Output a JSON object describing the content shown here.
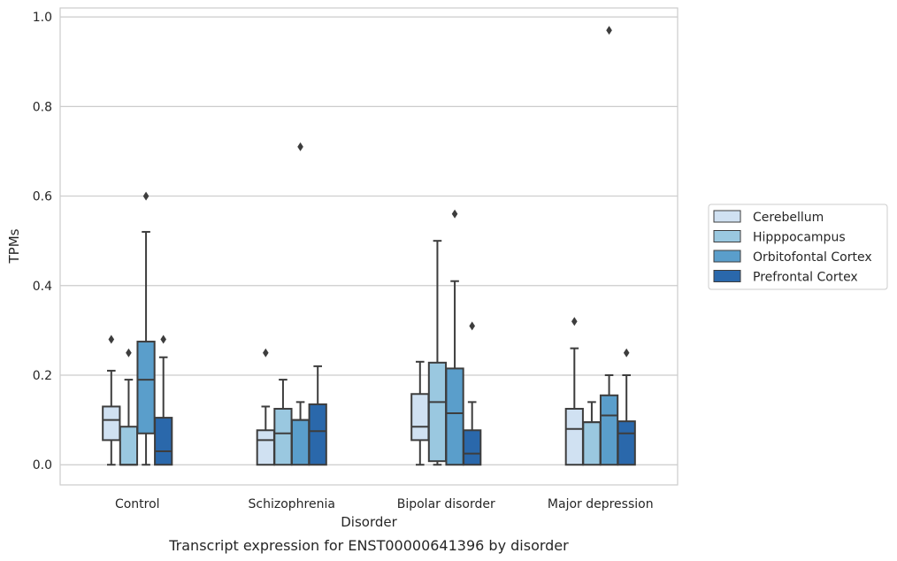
{
  "chart_data": {
    "type": "boxplot",
    "xlabel": "Disorder",
    "ylabel": "TPMs",
    "caption": "Transcript expression for ENST00000641396 by disorder",
    "ylim": [
      -0.045,
      1.02
    ],
    "yticks": [
      "0.0",
      "0.2",
      "0.4",
      "0.6",
      "0.8",
      "1.0"
    ],
    "grid": "horizontal",
    "legend_position": "right",
    "categories": [
      "Control",
      "Schizophrenia",
      "Bipolar disorder",
      "Major depression"
    ],
    "series": [
      {
        "name": "Cerebellum",
        "color": "#d0e1f2",
        "boxes": [
          {
            "whisker_low": 0.0,
            "q1": 0.055,
            "median": 0.1,
            "q3": 0.13,
            "whisker_high": 0.21,
            "outliers": [
              0.28
            ]
          },
          {
            "whisker_low": 0.0,
            "q1": 0.0,
            "median": 0.055,
            "q3": 0.077,
            "whisker_high": 0.13,
            "outliers": [
              0.25
            ]
          },
          {
            "whisker_low": 0.0,
            "q1": 0.055,
            "median": 0.085,
            "q3": 0.158,
            "whisker_high": 0.23,
            "outliers": []
          },
          {
            "whisker_low": 0.0,
            "q1": 0.0,
            "median": 0.08,
            "q3": 0.125,
            "whisker_high": 0.26,
            "outliers": [
              0.32
            ]
          }
        ]
      },
      {
        "name": "Hipppocampus",
        "color": "#9ac8e0",
        "boxes": [
          {
            "whisker_low": 0.0,
            "q1": 0.0,
            "median": 0.0,
            "q3": 0.085,
            "whisker_high": 0.19,
            "outliers": [
              0.25
            ]
          },
          {
            "whisker_low": 0.0,
            "q1": 0.0,
            "median": 0.07,
            "q3": 0.125,
            "whisker_high": 0.19,
            "outliers": []
          },
          {
            "whisker_low": 0.0,
            "q1": 0.008,
            "median": 0.14,
            "q3": 0.228,
            "whisker_high": 0.5,
            "outliers": []
          },
          {
            "whisker_low": 0.0,
            "q1": 0.0,
            "median": 0.095,
            "q3": 0.095,
            "whisker_high": 0.14,
            "outliers": []
          }
        ]
      },
      {
        "name": "Orbitofontal Cortex",
        "color": "#5a9ecb",
        "boxes": [
          {
            "whisker_low": 0.0,
            "q1": 0.07,
            "median": 0.19,
            "q3": 0.275,
            "whisker_high": 0.52,
            "outliers": [
              0.6
            ]
          },
          {
            "whisker_low": 0.0,
            "q1": 0.0,
            "median": 0.1,
            "q3": 0.1,
            "whisker_high": 0.14,
            "outliers": [
              0.71
            ]
          },
          {
            "whisker_low": 0.0,
            "q1": 0.0,
            "median": 0.115,
            "q3": 0.215,
            "whisker_high": 0.41,
            "outliers": [
              0.56
            ]
          },
          {
            "whisker_low": 0.0,
            "q1": 0.0,
            "median": 0.11,
            "q3": 0.155,
            "whisker_high": 0.2,
            "outliers": [
              0.97
            ]
          }
        ]
      },
      {
        "name": "Prefrontal Cortex",
        "color": "#2a68ab",
        "boxes": [
          {
            "whisker_low": 0.0,
            "q1": 0.0,
            "median": 0.03,
            "q3": 0.105,
            "whisker_high": 0.24,
            "outliers": [
              0.28
            ]
          },
          {
            "whisker_low": 0.0,
            "q1": 0.0,
            "median": 0.075,
            "q3": 0.135,
            "whisker_high": 0.22,
            "outliers": []
          },
          {
            "whisker_low": 0.0,
            "q1": 0.0,
            "median": 0.025,
            "q3": 0.077,
            "whisker_high": 0.14,
            "outliers": [
              0.31
            ]
          },
          {
            "whisker_low": 0.0,
            "q1": 0.0,
            "median": 0.07,
            "q3": 0.097,
            "whisker_high": 0.2,
            "outliers": [
              0.25
            ]
          }
        ]
      }
    ]
  }
}
